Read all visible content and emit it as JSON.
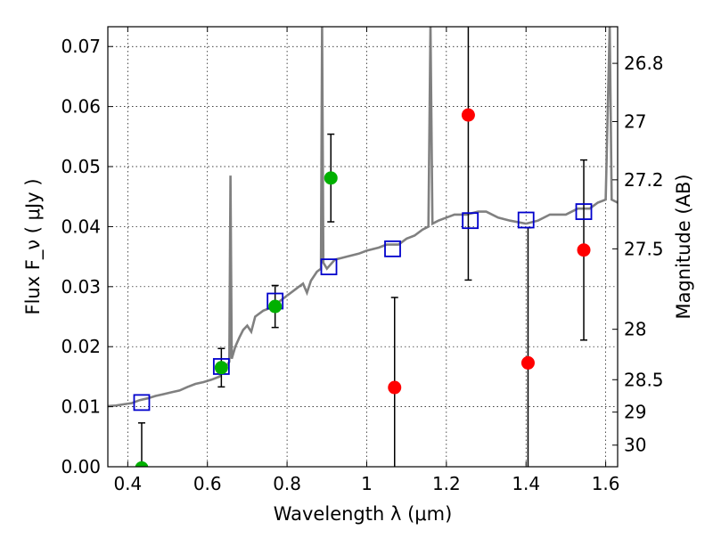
{
  "chart_data": {
    "type": "scatter",
    "xlabel": "Wavelength  λ (μm)",
    "ylabel": "Flux  F_ν  ( μJy )",
    "ylabel_right": "Magnitude (AB)",
    "xlim": [
      0.35,
      1.63
    ],
    "ylim": [
      0.0,
      0.0733
    ],
    "grid": true,
    "x_ticks": [
      {
        "value": 0.4,
        "label": "0.4"
      },
      {
        "value": 0.6,
        "label": "0.6"
      },
      {
        "value": 0.8,
        "label": "0.8"
      },
      {
        "value": 1.0,
        "label": "1"
      },
      {
        "value": 1.2,
        "label": "1.2"
      },
      {
        "value": 1.4,
        "label": "1.4"
      },
      {
        "value": 1.6,
        "label": "1.6"
      }
    ],
    "y_ticks": [
      {
        "value": 0.0,
        "label": "0.00"
      },
      {
        "value": 0.01,
        "label": "0.01"
      },
      {
        "value": 0.02,
        "label": "0.02"
      },
      {
        "value": 0.03,
        "label": "0.03"
      },
      {
        "value": 0.04,
        "label": "0.04"
      },
      {
        "value": 0.05,
        "label": "0.05"
      },
      {
        "value": 0.06,
        "label": "0.06"
      },
      {
        "value": 0.07,
        "label": "0.07"
      }
    ],
    "right_ticks": [
      {
        "flux": 0.0672,
        "label": "26.8"
      },
      {
        "flux": 0.0575,
        "label": "27"
      },
      {
        "flux": 0.0478,
        "label": "27.2"
      },
      {
        "flux": 0.0363,
        "label": "27.5"
      },
      {
        "flux": 0.0229,
        "label": "28"
      },
      {
        "flux": 0.0145,
        "label": "28.5"
      },
      {
        "flux": 0.0091,
        "label": "29"
      },
      {
        "flux": 0.0036,
        "label": "30"
      }
    ],
    "spectrum": {
      "color": "#808080",
      "points": [
        [
          0.35,
          0.0101
        ],
        [
          0.37,
          0.0102
        ],
        [
          0.39,
          0.0104
        ],
        [
          0.41,
          0.0106
        ],
        [
          0.43,
          0.0111
        ],
        [
          0.45,
          0.0114
        ],
        [
          0.47,
          0.0118
        ],
        [
          0.49,
          0.0121
        ],
        [
          0.51,
          0.0124
        ],
        [
          0.53,
          0.0127
        ],
        [
          0.55,
          0.0133
        ],
        [
          0.57,
          0.0138
        ],
        [
          0.59,
          0.0141
        ],
        [
          0.61,
          0.0145
        ],
        [
          0.63,
          0.015
        ],
        [
          0.645,
          0.0165
        ],
        [
          0.655,
          0.0175
        ],
        [
          0.658,
          0.0485
        ],
        [
          0.661,
          0.018
        ],
        [
          0.67,
          0.02
        ],
        [
          0.68,
          0.0215
        ],
        [
          0.69,
          0.0228
        ],
        [
          0.7,
          0.0235
        ],
        [
          0.71,
          0.0225
        ],
        [
          0.72,
          0.025
        ],
        [
          0.74,
          0.026
        ],
        [
          0.76,
          0.0265
        ],
        [
          0.78,
          0.0275
        ],
        [
          0.8,
          0.0285
        ],
        [
          0.82,
          0.0295
        ],
        [
          0.84,
          0.0305
        ],
        [
          0.85,
          0.029
        ],
        [
          0.86,
          0.031
        ],
        [
          0.875,
          0.0325
        ],
        [
          0.885,
          0.033
        ],
        [
          0.888,
          0.0735
        ],
        [
          0.891,
          0.034
        ],
        [
          0.9,
          0.033
        ],
        [
          0.92,
          0.0345
        ],
        [
          0.95,
          0.035
        ],
        [
          0.98,
          0.0355
        ],
        [
          1.0,
          0.036
        ],
        [
          1.03,
          0.0365
        ],
        [
          1.05,
          0.037
        ],
        [
          1.08,
          0.037
        ],
        [
          1.1,
          0.038
        ],
        [
          1.12,
          0.0385
        ],
        [
          1.14,
          0.0395
        ],
        [
          1.155,
          0.04
        ],
        [
          1.16,
          0.0735
        ],
        [
          1.165,
          0.0405
        ],
        [
          1.18,
          0.041
        ],
        [
          1.2,
          0.0415
        ],
        [
          1.22,
          0.042
        ],
        [
          1.25,
          0.042
        ],
        [
          1.28,
          0.0425
        ],
        [
          1.3,
          0.0425
        ],
        [
          1.33,
          0.0415
        ],
        [
          1.36,
          0.041
        ],
        [
          1.4,
          0.0405
        ],
        [
          1.43,
          0.041
        ],
        [
          1.46,
          0.042
        ],
        [
          1.5,
          0.042
        ],
        [
          1.53,
          0.043
        ],
        [
          1.56,
          0.043
        ],
        [
          1.58,
          0.044
        ],
        [
          1.6,
          0.0445
        ],
        [
          1.61,
          0.0735
        ],
        [
          1.615,
          0.0445
        ],
        [
          1.63,
          0.044
        ]
      ]
    },
    "series": [
      {
        "marker": "open-square",
        "color": "#0000cc",
        "points": [
          [
            0.435,
            0.0107
          ],
          [
            0.635,
            0.0167
          ],
          [
            0.77,
            0.0276
          ],
          [
            0.905,
            0.0333
          ],
          [
            1.065,
            0.0363
          ],
          [
            1.26,
            0.041
          ],
          [
            1.4,
            0.0411
          ],
          [
            1.545,
            0.0425
          ]
        ]
      },
      {
        "marker": "filled-circle",
        "color": "#00b000",
        "points": [
          [
            0.435,
            -0.0002
          ],
          [
            0.635,
            0.0165
          ],
          [
            0.77,
            0.0267
          ],
          [
            0.91,
            0.0481
          ]
        ],
        "errors": [
          0.0075,
          0.0032,
          0.0035,
          0.0073
        ]
      },
      {
        "marker": "filled-circle",
        "color": "#ff0000",
        "points": [
          [
            1.07,
            0.0132
          ],
          [
            1.255,
            0.0586
          ],
          [
            1.405,
            0.0173
          ],
          [
            1.545,
            0.0361
          ]
        ],
        "errors": [
          0.015,
          0.0275,
          0.0225,
          0.015
        ]
      }
    ]
  }
}
